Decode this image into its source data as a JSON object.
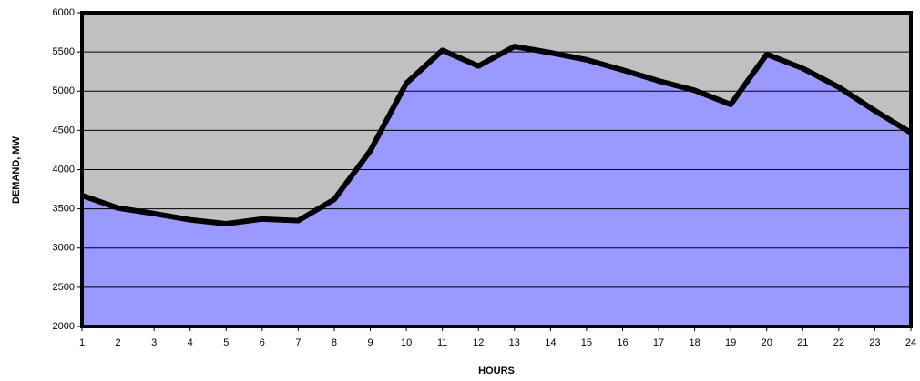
{
  "chart_data": {
    "type": "area",
    "x_label": "HOURS",
    "y_label": "DEMAND, MW",
    "x": [
      1,
      2,
      3,
      4,
      5,
      6,
      7,
      8,
      9,
      10,
      11,
      12,
      13,
      14,
      15,
      16,
      17,
      18,
      19,
      20,
      21,
      22,
      23,
      24
    ],
    "values": [
      3670,
      3510,
      3440,
      3360,
      3310,
      3370,
      3350,
      3620,
      4240,
      5100,
      5520,
      5320,
      5570,
      5490,
      5400,
      5270,
      5130,
      5010,
      4830,
      5470,
      5290,
      5050,
      4750,
      4470
    ],
    "color": "#9999ff",
    "line_color": "#000000",
    "background": "#c0c0c0",
    "xlim": [
      1,
      24
    ],
    "ylim": [
      2000,
      6000
    ],
    "yticks": [
      2000,
      2500,
      3000,
      3500,
      4000,
      4500,
      5000,
      5500,
      6000
    ],
    "grid": true
  }
}
